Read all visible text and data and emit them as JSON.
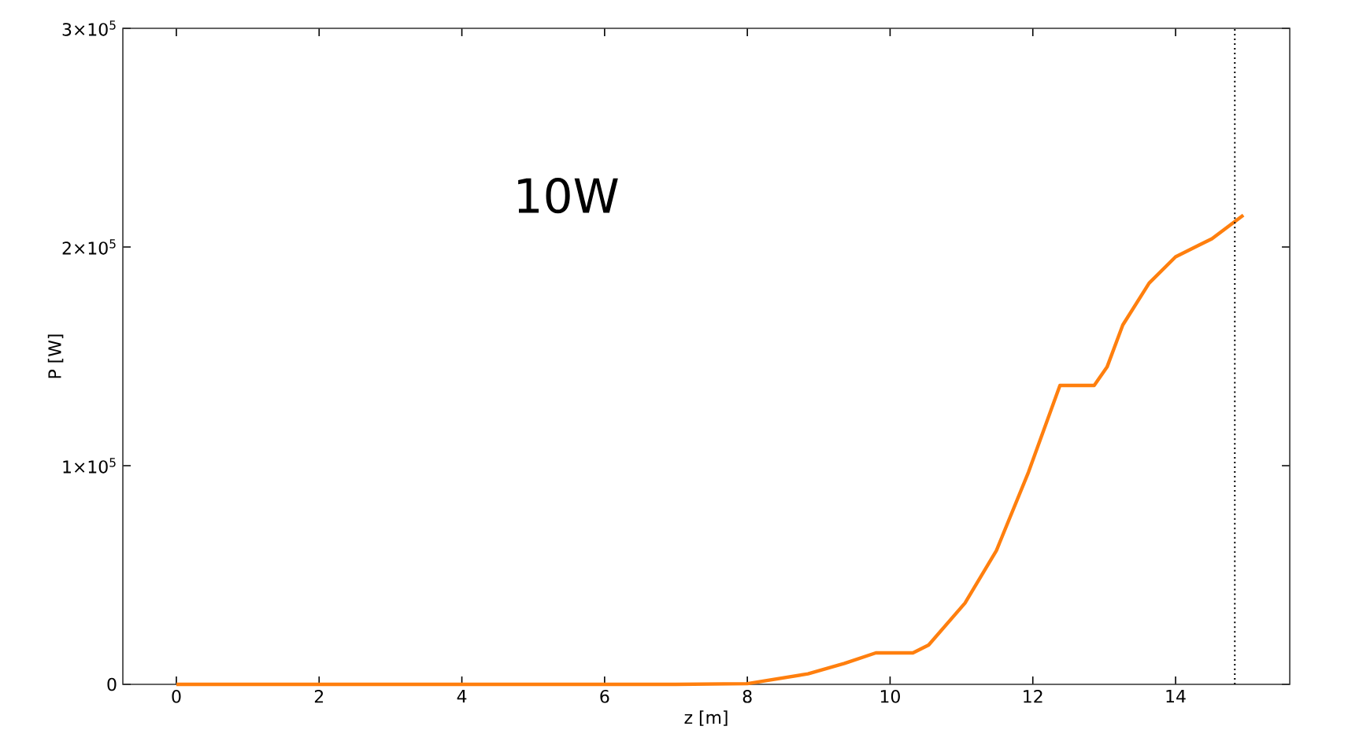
{
  "chart_data": {
    "type": "line",
    "xlabel": "z [m]",
    "ylabel": "P [W]",
    "annotations": [
      "10W"
    ],
    "xlim": [
      -0.75,
      15.6
    ],
    "ylim": [
      0,
      300000
    ],
    "xticks": [
      0,
      2,
      4,
      6,
      8,
      10,
      12,
      14
    ],
    "yticks": [
      0,
      {
        "value": 100000,
        "label": "1×10$^{5}$"
      },
      {
        "value": 200000,
        "label": "2×10$^{5}$"
      },
      {
        "value": 300000,
        "label": "3×10$^{5}$"
      }
    ],
    "line_style": "solid",
    "marker": "none",
    "ref_lines": [
      {
        "axis": "x",
        "value": 14.83,
        "color": "#000000",
        "line_style": "dotted"
      }
    ],
    "series": [
      {
        "color": "#ff7f0e",
        "x": [
          0,
          2,
          4,
          6,
          7,
          8,
          8.85,
          9.36,
          9.8,
          10.32,
          10.54,
          11.05,
          11.49,
          11.94,
          12.38,
          12.86,
          13.04,
          13.26,
          13.63,
          14.0,
          14.51,
          14.95
        ],
        "values": [
          0,
          0,
          0,
          0,
          0,
          300,
          4800,
          9600,
          14400,
          14400,
          18000,
          37200,
          61200,
          97100,
          136700,
          136700,
          145100,
          164300,
          183500,
          195500,
          203800,
          214600
        ]
      }
    ]
  }
}
